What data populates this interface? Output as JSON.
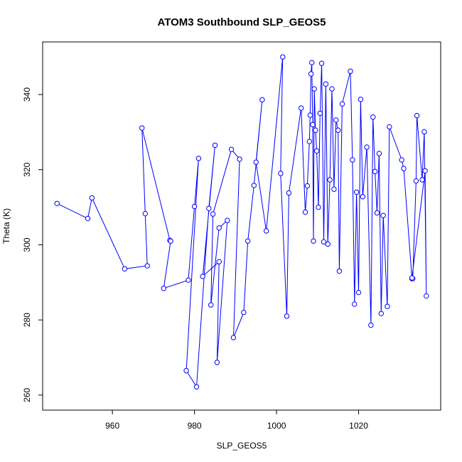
{
  "chart_data": {
    "type": "line",
    "title": "ATOM3 Southbound SLP_GEOS5",
    "xlabel": "SLP_GEOS5",
    "ylabel": "Theta (K)",
    "xlim": [
      943,
      1040
    ],
    "ylim": [
      256,
      354
    ],
    "xticks": [
      960,
      980,
      1000,
      1020
    ],
    "yticks": [
      260,
      280,
      300,
      320,
      340
    ],
    "grid": false,
    "color": "#0000ff",
    "series": [
      {
        "x": [
          946.5,
          954.0,
          955.0,
          963.0,
          968.5,
          968.0,
          967.2,
          974.0,
          974.2,
          972.5,
          978.5,
          980.0,
          981.0,
          978.0,
          980.5,
          983.5,
          985.0,
          982.0,
          986.0,
          985.5,
          988.0,
          986.0,
          984.0,
          984.5,
          989.0,
          991.0,
          989.5,
          992.0,
          993.0,
          994.5,
          996.5,
          995.0,
          997.5,
          1001.5,
          1001.0,
          1002.5,
          1003.0,
          1006.0,
          1007.0,
          1007.5,
          1008.0,
          1008.2,
          1008.4,
          1008.6,
          1008.8,
          1009.0,
          1009.2,
          1009.5,
          1009.8,
          1010.2,
          1010.6,
          1011.0,
          1011.5,
          1012.0,
          1012.5,
          1013.0,
          1013.5,
          1014.0,
          1014.5,
          1015.0,
          1015.3,
          1016.0,
          1018.0,
          1018.5,
          1019.0,
          1019.5,
          1020.0,
          1020.5,
          1021.0,
          1022.0,
          1023.0,
          1023.5,
          1024.0,
          1024.5,
          1025.0,
          1025.5,
          1026.0,
          1027.0,
          1027.5,
          1030.5,
          1031.0,
          1033.0,
          1033.2,
          1034.0,
          1034.2,
          1035.5,
          1036.0,
          1036.5,
          1036.2,
          1033.0
        ],
        "y": [
          311.0,
          307.0,
          312.5,
          293.6,
          294.4,
          308.3,
          331.1,
          301.2,
          301.0,
          288.4,
          290.6,
          310.2,
          323.0,
          266.5,
          262.2,
          309.7,
          326.5,
          291.6,
          295.5,
          268.7,
          306.5,
          304.5,
          284.0,
          308.2,
          325.4,
          322.8,
          275.3,
          282.0,
          301.0,
          315.8,
          338.6,
          322.0,
          303.7,
          350.0,
          319.0,
          281.0,
          313.8,
          336.4,
          308.7,
          315.7,
          327.5,
          334.5,
          345.5,
          348.5,
          332.0,
          301.0,
          341.5,
          330.5,
          325.0,
          310.0,
          335.0,
          348.3,
          300.8,
          342.8,
          300.2,
          317.3,
          341.5,
          314.8,
          333.2,
          330.5,
          293.0,
          337.5,
          346.2,
          322.6,
          284.2,
          314.0,
          287.3,
          338.7,
          312.8,
          326.0,
          278.6,
          334.0,
          319.5,
          308.5,
          324.3,
          281.7,
          307.8,
          283.6,
          331.4,
          322.6,
          320.3,
          291.0,
          291.0,
          317.0,
          334.4,
          317.3,
          330.1,
          286.4,
          319.7,
          291.2
        ]
      }
    ]
  }
}
